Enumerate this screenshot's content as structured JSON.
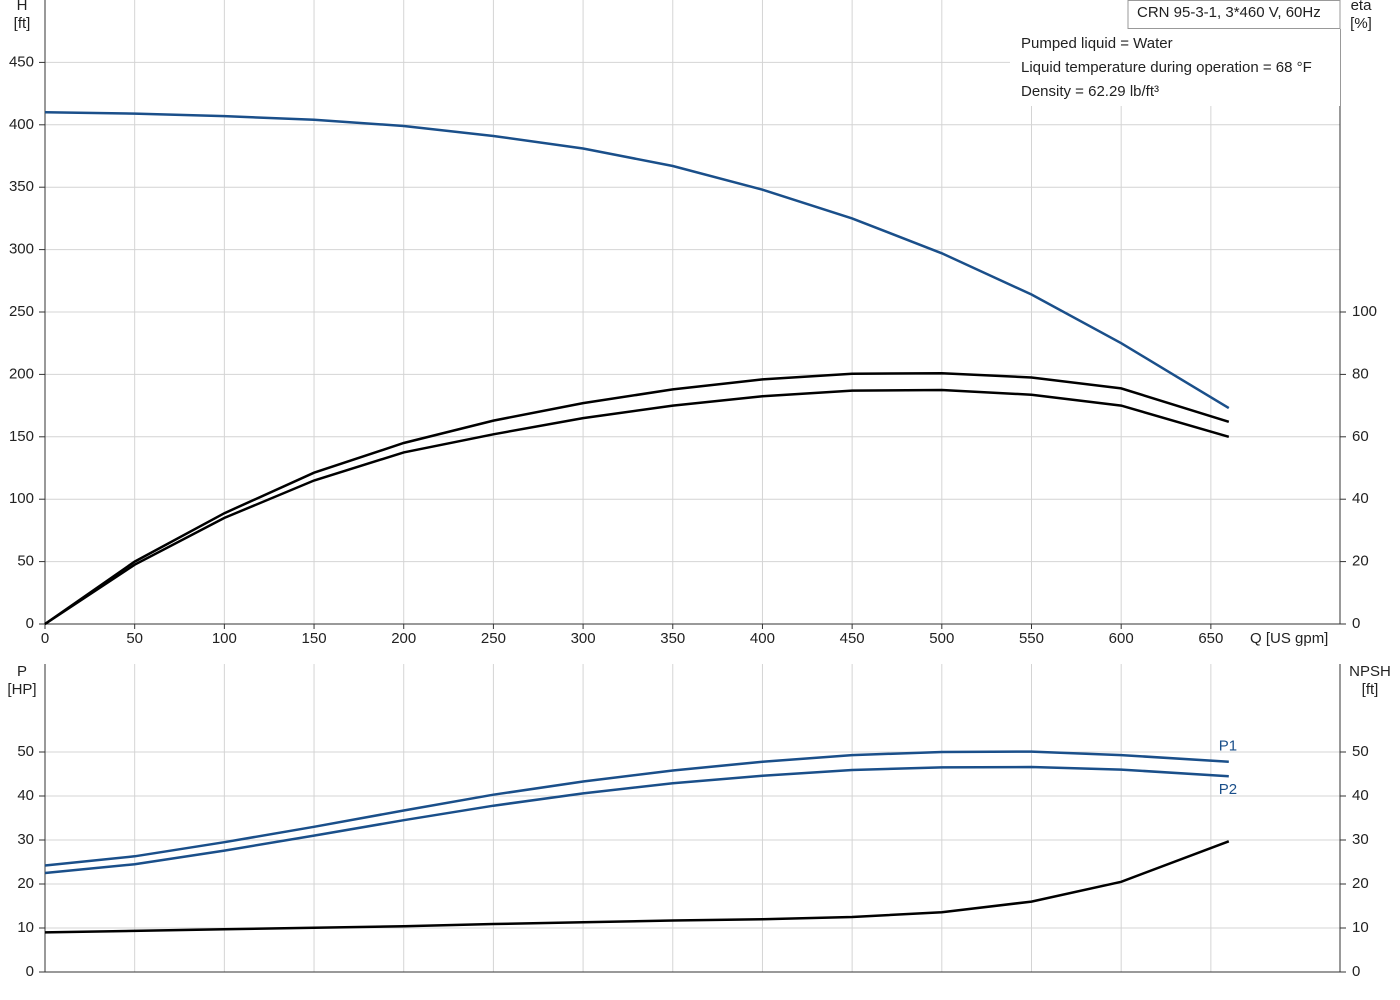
{
  "chart_data": [
    {
      "type": "line",
      "title": "CRN 95-3-1, 3*460 V, 60Hz",
      "annotations": [
        "Pumped liquid = Water",
        "Liquid temperature during operation = 68 °F",
        "Density = 62.29 lb/ft³"
      ],
      "x_label": "Q [US gpm]",
      "y_label": "H",
      "y_unit": "[ft]",
      "y2_label": "eta",
      "y2_unit": "[%]",
      "xlim": [
        0,
        722
      ],
      "xticks": [
        0,
        50,
        100,
        150,
        200,
        250,
        300,
        350,
        400,
        450,
        500,
        550,
        600,
        650
      ],
      "ylim": [
        0,
        500
      ],
      "yticks": [
        0,
        50,
        100,
        150,
        200,
        250,
        300,
        350,
        400,
        450
      ],
      "y2lim": [
        0,
        200
      ],
      "y2ticks": [
        0,
        20,
        40,
        60,
        80,
        100
      ],
      "grid": true,
      "series": [
        {
          "color": "#1a4f8a",
          "x": [
            0,
            50,
            100,
            150,
            200,
            250,
            300,
            350,
            400,
            450,
            500,
            550,
            600,
            660
          ],
          "values": [
            410,
            409,
            407,
            404,
            399,
            391,
            381,
            367,
            348,
            325,
            297,
            264,
            225,
            173
          ]
        },
        {
          "color": "#000000",
          "axis": "y2",
          "x": [
            0,
            50,
            100,
            150,
            200,
            250,
            300,
            350,
            400,
            450,
            500,
            550,
            600,
            660
          ],
          "values": [
            0,
            20,
            35.5,
            48.5,
            58,
            65.2,
            70.8,
            75.2,
            78.4,
            80.2,
            80.4,
            79,
            75.5,
            64.8
          ]
        },
        {
          "color": "#000000",
          "axis": "y2",
          "x": [
            0,
            50,
            100,
            150,
            200,
            250,
            300,
            350,
            400,
            450,
            500,
            550,
            600,
            660
          ],
          "values": [
            0,
            19,
            34,
            46,
            55,
            60.8,
            66,
            70,
            73,
            74.8,
            75,
            73.5,
            70,
            60
          ]
        }
      ]
    },
    {
      "type": "line",
      "y_label": "P",
      "y_unit": "[HP]",
      "y2_label": "NPSH",
      "y2_unit": "[ft]",
      "xlim": [
        0,
        722
      ],
      "ylim": [
        0,
        70
      ],
      "yticks": [
        0,
        10,
        20,
        30,
        40,
        50
      ],
      "y2lim": [
        0,
        70
      ],
      "y2ticks": [
        0,
        10,
        20,
        30,
        40,
        50
      ],
      "grid": true,
      "series": [
        {
          "name": "P1",
          "color": "#1a4f8a",
          "x": [
            0,
            50,
            100,
            150,
            200,
            250,
            300,
            350,
            400,
            450,
            500,
            550,
            600,
            660
          ],
          "values": [
            24.2,
            26.3,
            29.5,
            33,
            36.7,
            40.3,
            43.3,
            45.8,
            47.8,
            49.3,
            50,
            50.1,
            49.3,
            47.8
          ]
        },
        {
          "name": "P2",
          "color": "#1a4f8a",
          "x": [
            0,
            50,
            100,
            150,
            200,
            250,
            300,
            350,
            400,
            450,
            500,
            550,
            600,
            660
          ],
          "values": [
            22.5,
            24.5,
            27.6,
            31,
            34.5,
            37.8,
            40.6,
            42.9,
            44.6,
            45.9,
            46.5,
            46.6,
            46,
            44.5
          ]
        },
        {
          "color": "#000000",
          "axis": "y2",
          "x": [
            0,
            100,
            200,
            250,
            300,
            350,
            400,
            450,
            500,
            550,
            600,
            660
          ],
          "values": [
            9,
            9.7,
            10.4,
            10.9,
            11.3,
            11.7,
            12,
            12.5,
            13.6,
            16,
            20.5,
            29.7
          ]
        }
      ]
    }
  ]
}
